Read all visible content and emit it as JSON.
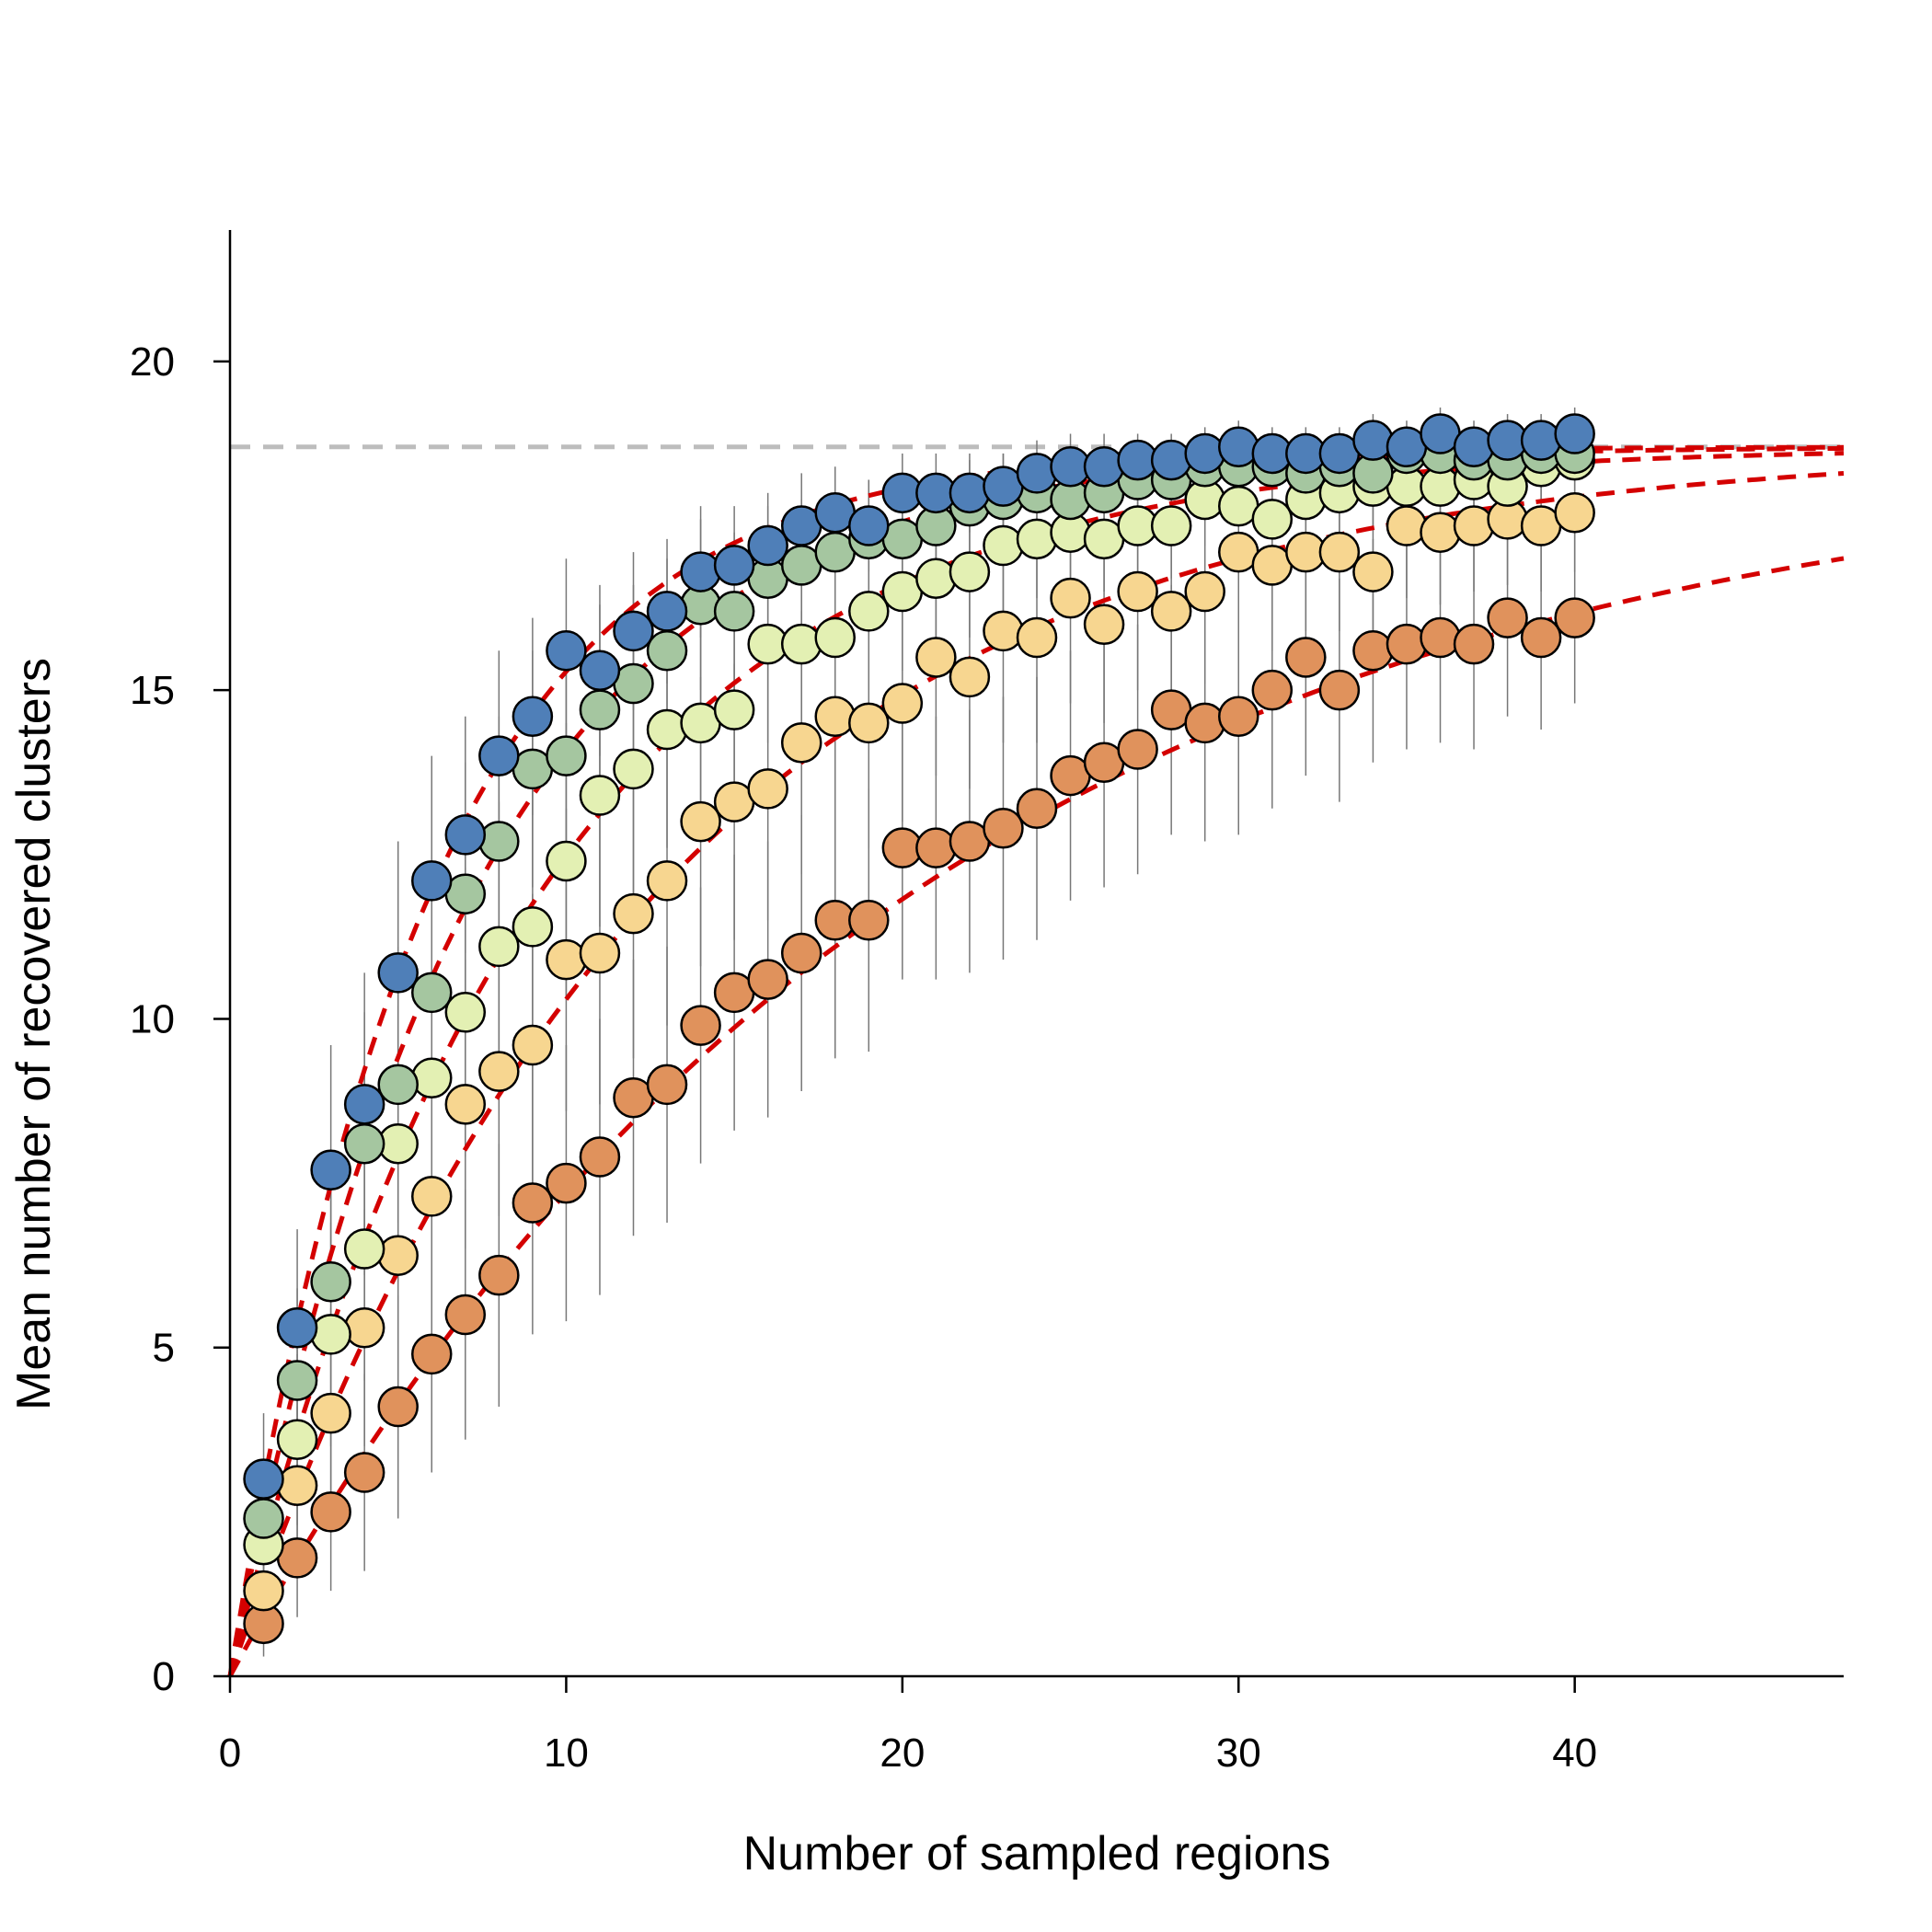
{
  "chart_data": {
    "type": "scatter",
    "title": "",
    "xlabel": "Number of sampled regions",
    "ylabel": "Mean number of recovered clusters",
    "xlim": [
      0,
      48
    ],
    "ylim": [
      0,
      22
    ],
    "x_ticks": [
      0,
      10,
      20,
      30,
      40
    ],
    "y_ticks": [
      0,
      5,
      10,
      15,
      20
    ],
    "x_tick_labels": [
      "0",
      "10",
      "20",
      "30",
      "40"
    ],
    "y_tick_labels": [
      "0",
      "5",
      "10",
      "15",
      "20"
    ],
    "grid": false,
    "legend": "none",
    "reference_line": {
      "y": 18.7,
      "color": "#bdbdbd",
      "style": "dashed"
    },
    "fit_color": "#d40000",
    "error_bar_color": "#777777",
    "marker_outline": "#000000",
    "x": [
      1,
      2,
      3,
      4,
      5,
      6,
      7,
      8,
      9,
      10,
      11,
      12,
      13,
      14,
      15,
      16,
      17,
      18,
      19,
      20,
      21,
      22,
      23,
      24,
      25,
      26,
      27,
      28,
      29,
      30,
      31,
      32,
      33,
      34,
      35,
      36,
      37,
      38,
      39,
      40
    ],
    "series": [
      {
        "color": "#e0925c",
        "fit": {
          "type": "asymptotic",
          "a": 18.7,
          "k": 0.05
        },
        "values": [
          0.8,
          1.8,
          2.5,
          3.1,
          4.1,
          4.9,
          5.5,
          6.1,
          7.2,
          7.5,
          7.9,
          8.8,
          9.0,
          9.9,
          10.4,
          10.6,
          11.0,
          11.5,
          11.5,
          12.6,
          12.6,
          12.7,
          12.9,
          13.2,
          13.7,
          13.9,
          14.1,
          14.7,
          14.5,
          14.6,
          15.0,
          15.5,
          15.0,
          15.6,
          15.7,
          15.8,
          15.7,
          16.1,
          15.8,
          16.1
        ],
        "err": [
          0.5,
          0.9,
          1.2,
          1.5,
          1.7,
          1.8,
          1.9,
          2.0,
          2.0,
          2.1,
          2.1,
          2.1,
          2.1,
          2.1,
          2.1,
          2.1,
          2.1,
          2.1,
          2.0,
          2.0,
          2.0,
          2.0,
          2.0,
          2.0,
          1.9,
          1.9,
          1.9,
          1.9,
          1.8,
          1.8,
          1.8,
          1.8,
          1.7,
          1.7,
          1.6,
          1.6,
          1.6,
          1.5,
          1.4,
          1.3
        ]
      },
      {
        "color": "#f7d690",
        "fit": {
          "type": "asymptotic",
          "a": 18.7,
          "k": 0.08
        },
        "values": [
          1.3,
          2.9,
          4.0,
          5.3,
          6.4,
          7.3,
          8.7,
          9.2,
          9.6,
          10.9,
          11.0,
          11.6,
          12.1,
          13.0,
          13.3,
          13.5,
          14.2,
          14.6,
          14.5,
          14.8,
          15.5,
          15.2,
          15.9,
          15.8,
          16.4,
          16.0,
          16.5,
          16.2,
          16.5,
          17.1,
          16.9,
          17.1,
          17.1,
          16.8,
          17.5,
          17.4,
          17.5,
          17.6,
          17.5,
          17.7
        ],
        "err": [
          0.6,
          1.2,
          1.6,
          1.8,
          2.0,
          2.1,
          2.2,
          2.2,
          2.3,
          2.3,
          2.3,
          2.2,
          2.2,
          2.2,
          2.1,
          2.0,
          2.0,
          1.9,
          1.9,
          1.8,
          1.8,
          1.7,
          1.7,
          1.6,
          1.6,
          1.5,
          1.5,
          1.4,
          1.4,
          1.3,
          1.3,
          1.2,
          1.2,
          1.2,
          1.1,
          1.1,
          1.0,
          1.0,
          1.0,
          0.9
        ]
      },
      {
        "color": "#e3f0b3",
        "fit": {
          "type": "asymptotic",
          "a": 18.7,
          "k": 0.11
        },
        "values": [
          2.0,
          3.6,
          5.2,
          6.5,
          8.1,
          9.1,
          10.1,
          11.1,
          11.4,
          12.4,
          13.4,
          13.8,
          14.4,
          14.5,
          14.7,
          15.7,
          15.7,
          15.8,
          16.2,
          16.5,
          16.7,
          16.8,
          17.2,
          17.3,
          17.4,
          17.3,
          17.5,
          17.5,
          17.9,
          17.8,
          17.6,
          17.9,
          18.0,
          18.1,
          18.1,
          18.1,
          18.2,
          18.1,
          18.4,
          18.5
        ],
        "err": [
          0.7,
          1.3,
          1.7,
          2.0,
          2.1,
          2.2,
          2.2,
          2.2,
          2.2,
          2.1,
          2.0,
          1.9,
          1.8,
          1.7,
          1.6,
          1.5,
          1.4,
          1.3,
          1.2,
          1.2,
          1.1,
          1.0,
          1.0,
          0.9,
          0.9,
          0.8,
          0.8,
          0.8,
          0.7,
          0.7,
          0.7,
          0.6,
          0.6,
          0.6,
          0.6,
          0.6,
          0.5,
          0.5,
          0.5,
          0.5
        ]
      },
      {
        "color": "#a5c6a0",
        "fit": {
          "type": "asymptotic",
          "a": 18.7,
          "k": 0.14
        },
        "values": [
          2.4,
          4.5,
          6.0,
          8.1,
          9.0,
          10.4,
          11.9,
          12.7,
          13.8,
          14.0,
          14.7,
          15.1,
          15.6,
          16.3,
          16.2,
          16.7,
          16.9,
          17.1,
          17.3,
          17.3,
          17.5,
          17.8,
          17.9,
          18.0,
          17.9,
          18.0,
          18.2,
          18.2,
          18.4,
          18.4,
          18.4,
          18.3,
          18.4,
          18.3,
          18.6,
          18.6,
          18.5,
          18.5,
          18.6,
          18.6
        ],
        "err": [
          0.8,
          1.4,
          1.8,
          2.0,
          2.1,
          2.1,
          2.0,
          1.9,
          1.8,
          1.7,
          1.6,
          1.5,
          1.4,
          1.3,
          1.2,
          1.1,
          1.0,
          0.9,
          0.9,
          0.8,
          0.8,
          0.7,
          0.7,
          0.6,
          0.6,
          0.6,
          0.5,
          0.5,
          0.5,
          0.5,
          0.5,
          0.4,
          0.4,
          0.4,
          0.4,
          0.4,
          0.4,
          0.4,
          0.4,
          0.4
        ]
      },
      {
        "color": "#4f7fb8",
        "fit": {
          "type": "asymptotic",
          "a": 18.7,
          "k": 0.17
        },
        "values": [
          3.0,
          5.3,
          7.7,
          8.7,
          10.7,
          12.1,
          12.8,
          14.0,
          14.6,
          15.6,
          15.3,
          15.9,
          16.2,
          16.8,
          16.9,
          17.2,
          17.5,
          17.7,
          17.5,
          18.0,
          18.0,
          18.0,
          18.1,
          18.3,
          18.4,
          18.4,
          18.5,
          18.5,
          18.6,
          18.7,
          18.6,
          18.6,
          18.6,
          18.8,
          18.7,
          18.9,
          18.7,
          18.8,
          18.8,
          18.9
        ],
        "err": [
          1.0,
          1.5,
          1.9,
          2.0,
          2.0,
          1.9,
          1.8,
          1.6,
          1.5,
          1.4,
          1.3,
          1.2,
          1.1,
          1.0,
          0.9,
          0.8,
          0.8,
          0.7,
          0.7,
          0.6,
          0.6,
          0.6,
          0.5,
          0.5,
          0.5,
          0.5,
          0.4,
          0.4,
          0.4,
          0.4,
          0.4,
          0.4,
          0.4,
          0.4,
          0.4,
          0.4,
          0.4,
          0.4,
          0.4,
          0.4
        ]
      }
    ]
  }
}
